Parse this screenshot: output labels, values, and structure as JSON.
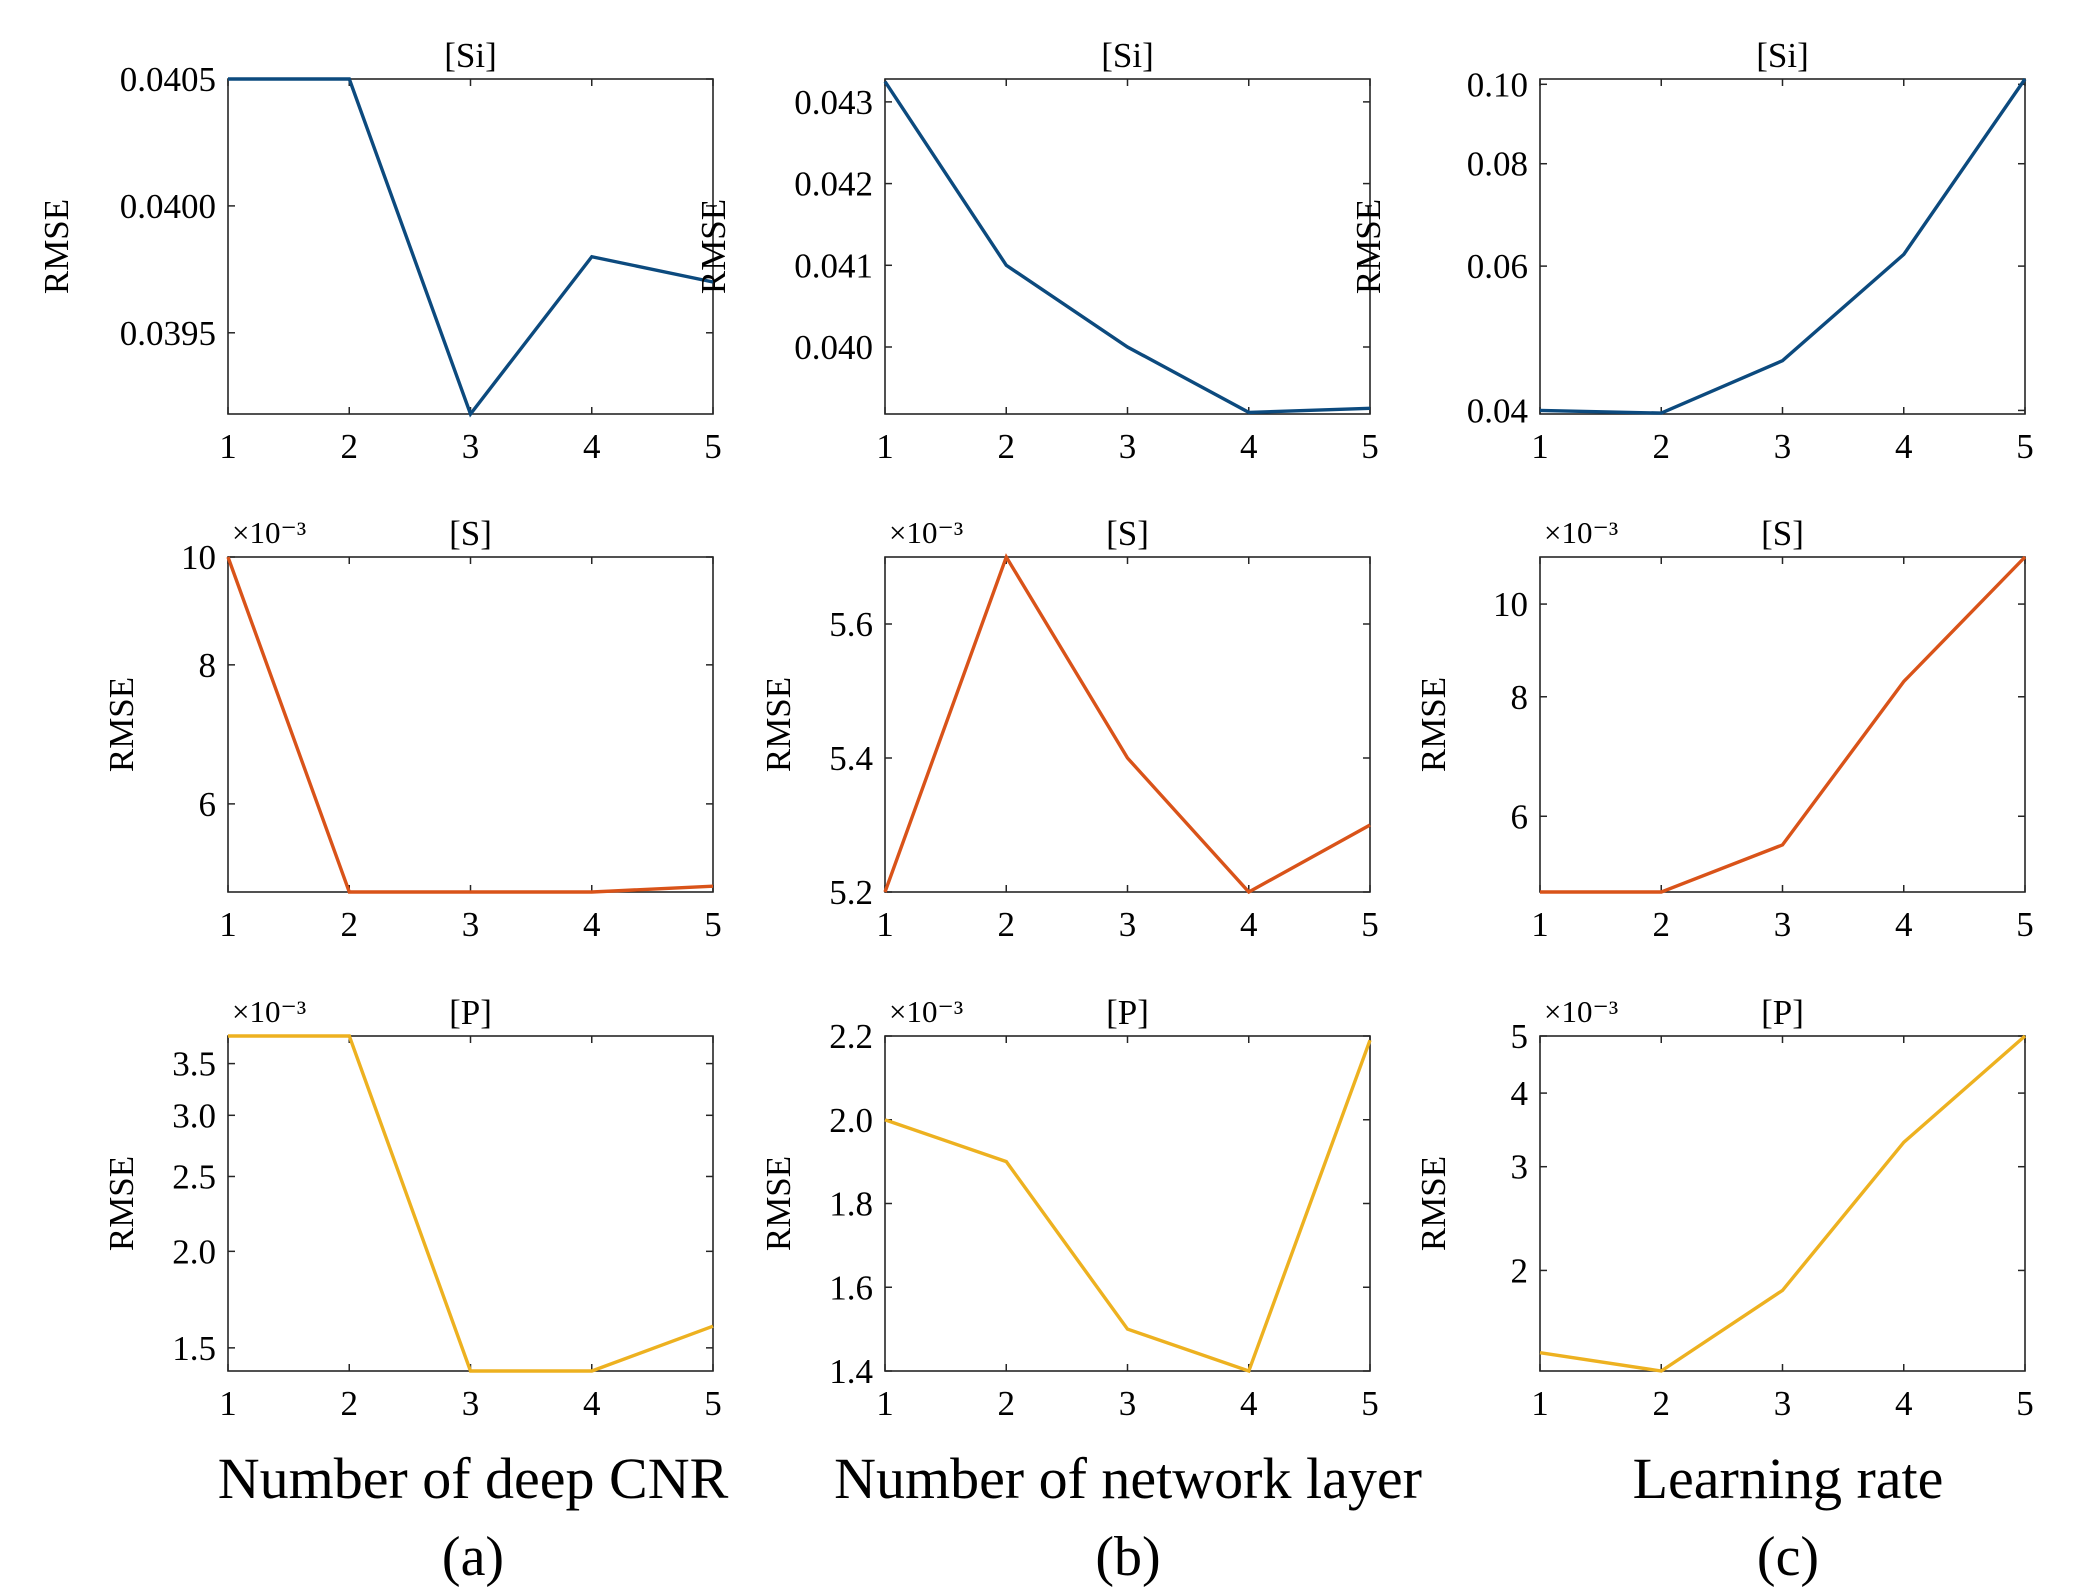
{
  "figure": {
    "column_labels": [
      "Number of deep CNR",
      "Number of network layer",
      "Learning rate"
    ],
    "panel_letters": [
      "(a)",
      "(b)",
      "(c)"
    ]
  },
  "chart_data": [
    {
      "type": "line",
      "title": "[Si]",
      "ylabel": "RMSE",
      "xlabel": "",
      "multiplier": "",
      "x": [
        1,
        2,
        3,
        4,
        5
      ],
      "xlim": [
        1,
        5
      ],
      "xticks": [
        "1",
        "2",
        "3",
        "4",
        "5"
      ],
      "ylim": [
        0.03918,
        0.0405
      ],
      "yticks": [
        0.0395,
        0.04,
        0.0405
      ],
      "ytick_labels": [
        "0.0395",
        "0.0400",
        "0.0405"
      ],
      "yscale": "linear",
      "color": "#0c4a7e",
      "grid": false,
      "series": [
        {
          "values": [
            0.0405,
            0.0405,
            0.03918,
            0.0398,
            0.0397
          ]
        }
      ]
    },
    {
      "type": "line",
      "title": "[Si]",
      "ylabel": "RMSE",
      "xlabel": "",
      "multiplier": "",
      "x": [
        1,
        2,
        3,
        4,
        5
      ],
      "xlim": [
        1,
        5
      ],
      "xticks": [
        "1",
        "2",
        "3",
        "4",
        "5"
      ],
      "ylim": [
        0.03918,
        0.04328
      ],
      "yticks": [
        0.04,
        0.041,
        0.042,
        0.043
      ],
      "ytick_labels": [
        "0.040",
        "0.041",
        "0.042",
        "0.043"
      ],
      "yscale": "linear",
      "color": "#0c4a7e",
      "grid": false,
      "series": [
        {
          "values": [
            0.04325,
            0.041,
            0.04,
            0.0392,
            0.03925
          ]
        }
      ]
    },
    {
      "type": "line",
      "title": "[Si]",
      "ylabel": "RMSE",
      "xlabel": "",
      "multiplier": "",
      "x": [
        1,
        2,
        3,
        4,
        5
      ],
      "xlim": [
        1,
        5
      ],
      "xticks": [
        "1",
        "2",
        "3",
        "4",
        "5"
      ],
      "ylim": [
        0.0396,
        0.1015
      ],
      "yticks": [
        0.04,
        0.06,
        0.08,
        0.1
      ],
      "ytick_labels": [
        "0.04",
        "0.06",
        "0.08",
        "0.10"
      ],
      "yscale": "log",
      "color": "#0c4a7e",
      "grid": false,
      "series": [
        {
          "values": [
            0.04,
            0.0397,
            0.046,
            0.062,
            0.1015
          ]
        }
      ]
    },
    {
      "type": "line",
      "title": "[S]",
      "ylabel": "RMSE",
      "xlabel": "",
      "multiplier": "×10⁻³",
      "x": [
        1,
        2,
        3,
        4,
        5
      ],
      "xlim": [
        1,
        5
      ],
      "xticks": [
        "1",
        "2",
        "3",
        "4",
        "5"
      ],
      "ylim": [
        5.0,
        10.0
      ],
      "yticks": [
        6,
        8,
        10
      ],
      "ytick_labels": [
        "6",
        "8",
        "10"
      ],
      "yscale": "log",
      "color": "#d95319",
      "grid": false,
      "series": [
        {
          "values": [
            10.0,
            5.0,
            5.0,
            5.0,
            5.06
          ]
        }
      ]
    },
    {
      "type": "line",
      "title": "[S]",
      "ylabel": "RMSE",
      "xlabel": "",
      "multiplier": "×10⁻³",
      "x": [
        1,
        2,
        3,
        4,
        5
      ],
      "xlim": [
        1,
        5
      ],
      "xticks": [
        "1",
        "2",
        "3",
        "4",
        "5"
      ],
      "ylim": [
        5.2,
        5.7
      ],
      "yticks": [
        5.2,
        5.4,
        5.6
      ],
      "ytick_labels": [
        "5.2",
        "5.4",
        "5.6"
      ],
      "yscale": "linear",
      "color": "#d95319",
      "grid": false,
      "series": [
        {
          "values": [
            5.2,
            5.7,
            5.4,
            5.2,
            5.3
          ]
        }
      ]
    },
    {
      "type": "line",
      "title": "[S]",
      "ylabel": "RMSE",
      "xlabel": "",
      "multiplier": "×10⁻³",
      "x": [
        1,
        2,
        3,
        4,
        5
      ],
      "xlim": [
        1,
        5
      ],
      "xticks": [
        "1",
        "2",
        "3",
        "4",
        "5"
      ],
      "ylim": [
        5.0,
        11.2
      ],
      "yticks": [
        6,
        8,
        10
      ],
      "ytick_labels": [
        "6",
        "8",
        "10"
      ],
      "yscale": "log",
      "color": "#d95319",
      "grid": false,
      "series": [
        {
          "values": [
            5.0,
            5.0,
            5.6,
            8.3,
            11.2
          ]
        }
      ]
    },
    {
      "type": "line",
      "title": "[P]",
      "ylabel": "RMSE",
      "xlabel": "",
      "multiplier": "×10⁻³",
      "x": [
        1,
        2,
        3,
        4,
        5
      ],
      "xlim": [
        1,
        5
      ],
      "xticks": [
        "1",
        "2",
        "3",
        "4",
        "5"
      ],
      "ylim": [
        1.4,
        3.8
      ],
      "yticks": [
        1.5,
        2.0,
        2.5,
        3.0,
        3.5
      ],
      "ytick_labels": [
        "1.5",
        "2.0",
        "2.5",
        "3.0",
        "3.5"
      ],
      "yscale": "log",
      "color": "#edb120",
      "grid": false,
      "series": [
        {
          "values": [
            3.8,
            3.8,
            1.4,
            1.4,
            1.6
          ]
        }
      ]
    },
    {
      "type": "line",
      "title": "[P]",
      "ylabel": "RMSE",
      "xlabel": "",
      "multiplier": "×10⁻³",
      "x": [
        1,
        2,
        3,
        4,
        5
      ],
      "xlim": [
        1,
        5
      ],
      "xticks": [
        "1",
        "2",
        "3",
        "4",
        "5"
      ],
      "ylim": [
        1.4,
        2.2
      ],
      "yticks": [
        1.4,
        1.6,
        1.8,
        2.0,
        2.2
      ],
      "ytick_labels": [
        "1.4",
        "1.6",
        "1.8",
        "2.0",
        "2.2"
      ],
      "yscale": "linear",
      "color": "#edb120",
      "grid": false,
      "series": [
        {
          "values": [
            2.0,
            1.9,
            1.5,
            1.4,
            2.19
          ]
        }
      ]
    },
    {
      "type": "line",
      "title": "[P]",
      "ylabel": "RMSE",
      "xlabel": "",
      "multiplier": "×10⁻³",
      "x": [
        1,
        2,
        3,
        4,
        5
      ],
      "xlim": [
        1,
        5
      ],
      "xticks": [
        "1",
        "2",
        "3",
        "4",
        "5"
      ],
      "ylim": [
        1.35,
        5.0
      ],
      "yticks": [
        2,
        3,
        4,
        5
      ],
      "ytick_labels": [
        "2",
        "3",
        "4",
        "5"
      ],
      "yscale": "log",
      "color": "#edb120",
      "grid": false,
      "series": [
        {
          "values": [
            1.45,
            1.35,
            1.85,
            3.3,
            5.0
          ]
        }
      ]
    }
  ]
}
